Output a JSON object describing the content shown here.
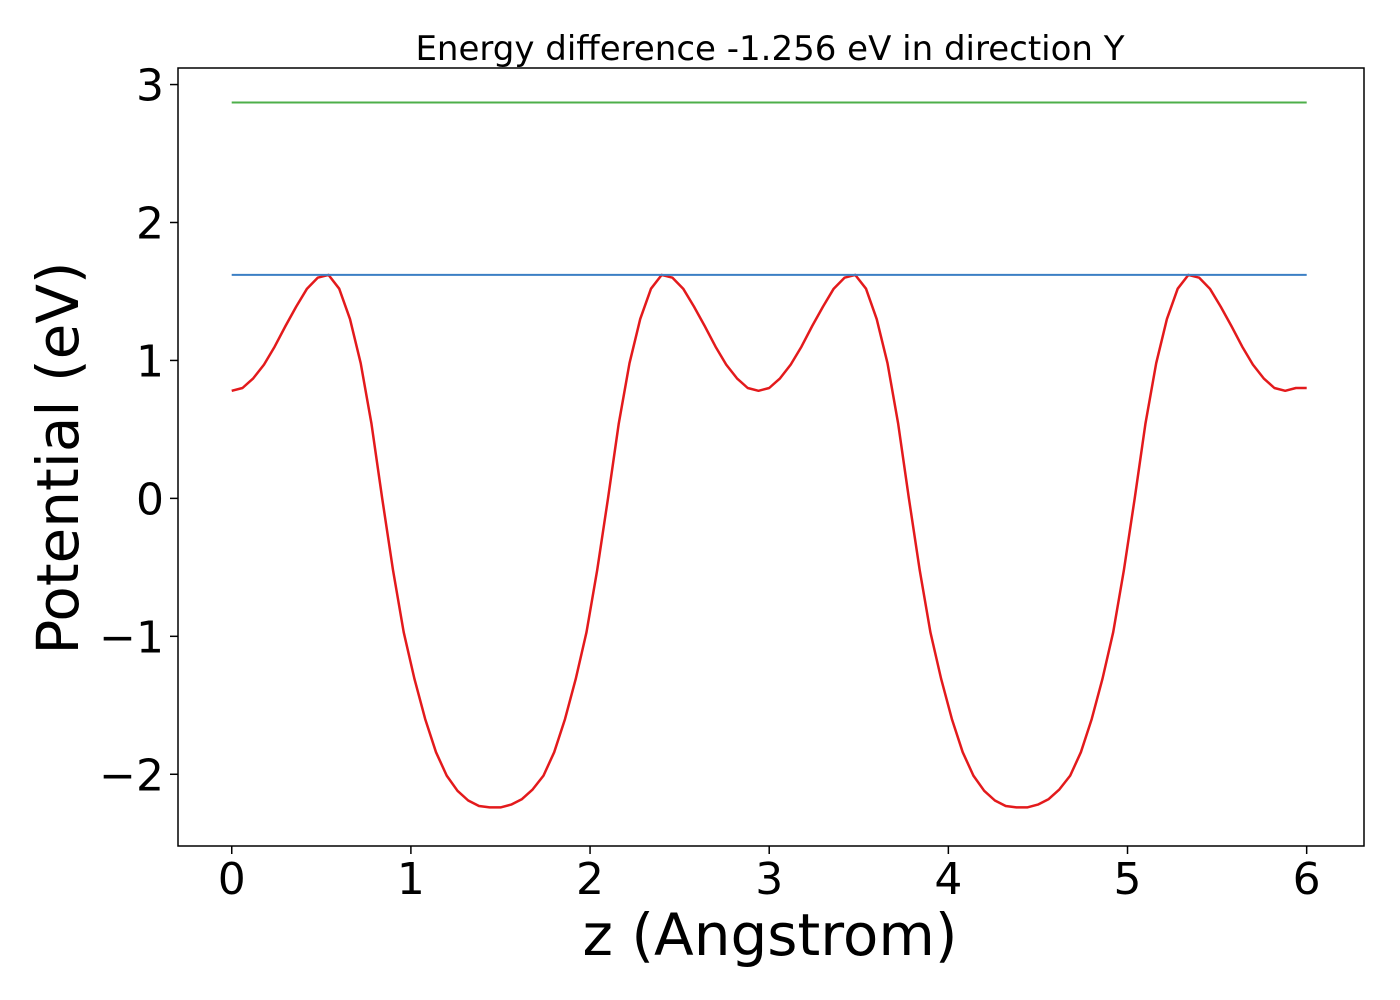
{
  "chart_data": {
    "type": "line",
    "title": "Energy difference -1.256 eV in direction Y",
    "xlabel": "z (Angstrom)",
    "ylabel": "Potential (eV)",
    "xlim": [
      -0.3,
      6.32
    ],
    "ylim": [
      -2.52,
      3.12
    ],
    "xticks": [
      0,
      1,
      2,
      3,
      4,
      5,
      6
    ],
    "xtick_labels": [
      "0",
      "1",
      "2",
      "3",
      "4",
      "5",
      "6"
    ],
    "yticks": [
      -2,
      -1,
      0,
      1,
      2,
      3
    ],
    "ytick_labels": [
      "−2",
      "−1",
      "0",
      "1",
      "2",
      "3"
    ],
    "grid": false,
    "colors": {
      "potential": "#e31a1c",
      "level_1": "#3b7fc4",
      "level_2": "#4daf4a"
    },
    "series": [
      {
        "key": "potential",
        "x": [
          0.0,
          0.06,
          0.12,
          0.18,
          0.24,
          0.3,
          0.36,
          0.42,
          0.48,
          0.54,
          0.6,
          0.66,
          0.72,
          0.78,
          0.84,
          0.9,
          0.96,
          1.02,
          1.08,
          1.14,
          1.2,
          1.26,
          1.32,
          1.38,
          1.44,
          1.5,
          1.56,
          1.62,
          1.68,
          1.74,
          1.8,
          1.86,
          1.92,
          1.98,
          2.04,
          2.1,
          2.16,
          2.22,
          2.28,
          2.34,
          2.4,
          2.46,
          2.52,
          2.58,
          2.64,
          2.7,
          2.76,
          2.82,
          2.88,
          2.94,
          3.0,
          3.06,
          3.12,
          3.18,
          3.24,
          3.3,
          3.36,
          3.42,
          3.48,
          3.54,
          3.6,
          3.66,
          3.72,
          3.78,
          3.84,
          3.9,
          3.96,
          4.02,
          4.08,
          4.14,
          4.2,
          4.26,
          4.32,
          4.38,
          4.44,
          4.5,
          4.56,
          4.62,
          4.68,
          4.74,
          4.8,
          4.86,
          4.92,
          4.98,
          5.04,
          5.1,
          5.16,
          5.22,
          5.28,
          5.34,
          5.4,
          5.46,
          5.52,
          5.58,
          5.64,
          5.7,
          5.76,
          5.82,
          5.88,
          5.94,
          6.0
        ],
        "y": [
          0.78,
          0.8,
          0.87,
          0.97,
          1.1,
          1.25,
          1.39,
          1.52,
          1.6,
          1.62,
          1.52,
          1.3,
          0.98,
          0.54,
          0.0,
          -0.52,
          -0.97,
          -1.31,
          -1.6,
          -1.84,
          -2.01,
          -2.12,
          -2.19,
          -2.23,
          -2.24,
          -2.24,
          -2.22,
          -2.18,
          -2.11,
          -2.01,
          -1.84,
          -1.6,
          -1.31,
          -0.97,
          -0.52,
          0.0,
          0.54,
          0.98,
          1.3,
          1.52,
          1.62,
          1.6,
          1.52,
          1.39,
          1.25,
          1.1,
          0.97,
          0.87,
          0.8,
          0.78,
          0.8,
          0.87,
          0.97,
          1.1,
          1.25,
          1.39,
          1.52,
          1.6,
          1.62,
          1.52,
          1.3,
          0.98,
          0.54,
          0.0,
          -0.52,
          -0.97,
          -1.31,
          -1.6,
          -1.84,
          -2.01,
          -2.12,
          -2.19,
          -2.23,
          -2.24,
          -2.24,
          -2.22,
          -2.18,
          -2.11,
          -2.01,
          -1.84,
          -1.6,
          -1.31,
          -0.97,
          -0.52,
          0.0,
          0.54,
          0.98,
          1.3,
          1.52,
          1.62,
          1.6,
          1.52,
          1.39,
          1.25,
          1.1,
          0.97,
          0.87,
          0.8,
          0.78,
          0.8,
          0.8
        ]
      },
      {
        "key": "level_1",
        "x": [
          0.0,
          6.0
        ],
        "y": [
          1.62,
          1.62
        ]
      },
      {
        "key": "level_2",
        "x": [
          0.0,
          6.0
        ],
        "y": [
          2.87,
          2.87
        ]
      }
    ]
  }
}
